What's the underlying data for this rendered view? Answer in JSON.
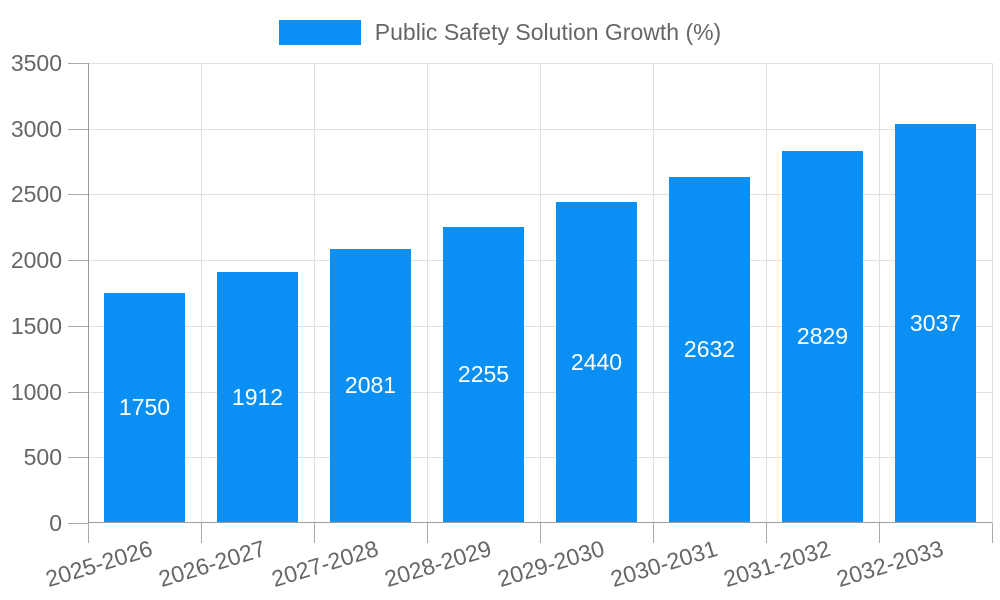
{
  "chart_data": {
    "type": "bar",
    "title": "Public Safety Solution Growth (%)",
    "legend": {
      "label": "Public Safety Solution Growth (%)",
      "position": "top"
    },
    "categories": [
      "2025-2026",
      "2026-2027",
      "2027-2028",
      "2028-2029",
      "2029-2030",
      "2030-2031",
      "2031-2032",
      "2032-2033"
    ],
    "series": [
      {
        "name": "Public Safety Solution Growth (%)",
        "values": [
          1750,
          1912,
          2081,
          2255,
          2440,
          2632,
          2829,
          3037
        ]
      }
    ],
    "bar_value_labels": [
      "1750",
      "1912",
      "2081",
      "2255",
      "2440",
      "2632",
      "2829",
      "3037"
    ],
    "xlabel": "",
    "ylabel": "",
    "ylim": [
      0,
      3500
    ],
    "yticks": [
      0,
      500,
      1000,
      1500,
      2000,
      2500,
      3000,
      3500
    ],
    "grid": true,
    "colors": {
      "bar": "#0a90f5",
      "bar_label": "#ffffff",
      "axis_text": "#666666",
      "grid_line": "#e0e0e0",
      "axis_line": "#9e9e9e"
    }
  }
}
